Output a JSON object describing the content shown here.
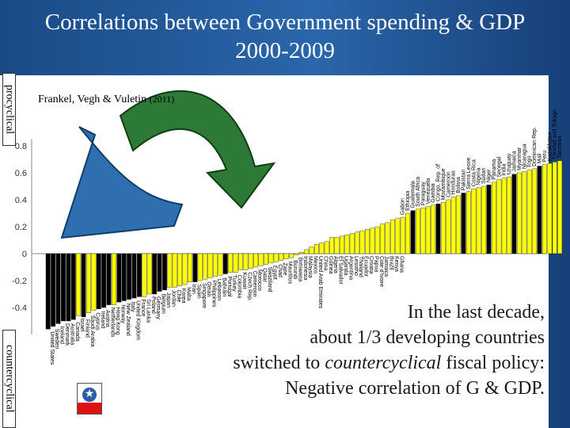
{
  "slide": {
    "title_line1": "Correlations between Government spending & GDP",
    "title_line2": "2000-2009",
    "label_procyclical": "procyclical",
    "label_countercyclical": "countercyclical",
    "citation_names": "Frankel, Vegh & Vuletin",
    "citation_year": "(2011)",
    "callout_line1": "In the last decade,",
    "callout_line2": "about 1/3 developing countries",
    "callout_line3_pre": "switched to ",
    "callout_line3_em": "countercyclical",
    "callout_line3_post": " fiscal policy:",
    "callout_line4": "Negative correlation of G & GDP."
  },
  "colors": {
    "background": "#1f5597",
    "developing_bar": "#ffff00",
    "industrial_bar": "#000000",
    "arrow": "#1f6b2a"
  },
  "chart_data": {
    "type": "bar",
    "title": "",
    "xlabel": "",
    "ylabel": "",
    "ylim": [
      -0.6,
      1.0
    ],
    "yticks": [
      "-0.4",
      "-0.2",
      "0",
      "0.2",
      "0.4",
      "0.6",
      "0.8"
    ],
    "grid": false,
    "legend": "none",
    "series": [
      {
        "categories": [
          "United States",
          "Sweden",
          "Iceland",
          "Denmark",
          "Australia",
          "Canada",
          "Israel",
          "Finland",
          "Saudi Arabia",
          "Cyprus",
          "Ireland",
          "Austria",
          "Netherlands",
          "Hong Kong",
          "Norway",
          "New Zealand",
          "Italy",
          "United Kingdom",
          "France",
          "Sri Lanka",
          "Poland",
          "Germany",
          "Belgium",
          "Japan",
          "Jordan",
          "Chile",
          "Korea",
          "Malta",
          "Iran",
          "Spain",
          "Singapore",
          "Oman",
          "Philippines",
          "Lebanon",
          "Bahrain",
          "Portugal",
          "Turkey",
          "Colombia",
          "Kuwait",
          "Czech Rep.",
          "Cameroon",
          "Morocco",
          "Qatar",
          "Swaziland",
          "Egypt",
          "Chad",
          "Zaire",
          "Mauritius",
          "Burundi",
          "Botswana",
          "Indonesia",
          "Malaysia",
          "Mexico",
          "United Arab Emirates",
          "China",
          "Guinea",
          "Algeria",
          "El Salvador",
          "Uganda",
          "Argentina",
          "Lesotho",
          "Thailand",
          "Ecuador",
          "Croatia",
          "Papua",
          "Cote d'Ivoire",
          "Jamaica",
          "Brazil",
          "Kenya",
          "Ghana"
        ],
        "values": [
          -0.56,
          -0.54,
          -0.52,
          -0.5,
          -0.5,
          -0.49,
          -0.46,
          -0.47,
          -0.44,
          -0.42,
          -0.41,
          -0.4,
          -0.38,
          -0.38,
          -0.36,
          -0.35,
          -0.34,
          -0.33,
          -0.32,
          -0.32,
          -0.3,
          -0.3,
          -0.28,
          -0.27,
          -0.25,
          -0.25,
          -0.24,
          -0.23,
          -0.21,
          -0.21,
          -0.2,
          -0.19,
          -0.18,
          -0.17,
          -0.16,
          -0.15,
          -0.14,
          -0.14,
          -0.12,
          -0.12,
          -0.11,
          -0.1,
          -0.09,
          -0.08,
          -0.07,
          -0.06,
          -0.05,
          -0.04,
          -0.03,
          -0.01,
          0.01,
          0.03,
          0.05,
          0.07,
          0.08,
          0.09,
          0.12,
          0.12,
          0.13,
          0.14,
          0.15,
          0.16,
          0.17,
          0.18,
          0.19,
          0.2,
          0.22,
          0.23,
          0.25,
          0.26
        ],
        "industrial": [
          true,
          true,
          true,
          true,
          true,
          true,
          false,
          true,
          false,
          false,
          true,
          true,
          true,
          false,
          true,
          true,
          true,
          true,
          true,
          false,
          false,
          true,
          true,
          true,
          false,
          false,
          false,
          false,
          false,
          true,
          false,
          false,
          false,
          false,
          false,
          true,
          false,
          false,
          false,
          false,
          false,
          false,
          false,
          false,
          false,
          false,
          false,
          false,
          false,
          false,
          false,
          false,
          false,
          false,
          false,
          false,
          false,
          false,
          false,
          false,
          false,
          false,
          false,
          false,
          false,
          false,
          false,
          false,
          false,
          false
        ]
      }
    ],
    "right_categories": [
      "Gabon",
      "Ethiopia",
      "Guatemala",
      "South Africa",
      "Paraguay",
      "Venezuela",
      "Gambia",
      "Congo, Rep. of",
      "Mozambique",
      "Cameroon",
      "Honduras",
      "Bolivia",
      "Pakistan",
      "Sierra Leone",
      "Costa Rica",
      "Nigeria",
      "Sudan",
      "Niger",
      "Panama",
      "Senegal",
      "India",
      "Uruguay",
      "Jamaica",
      "Myanmar",
      "Nicaragua",
      "Togo",
      "Dominican Rep.",
      "Mali",
      "Peru",
      "Kazakhstan",
      "Trinidad and Tobago",
      "Tanzania"
    ],
    "right_values": [
      0.27,
      0.3,
      0.32,
      0.33,
      0.34,
      0.35,
      0.36,
      0.37,
      0.38,
      0.4,
      0.42,
      0.43,
      0.45,
      0.46,
      0.48,
      0.49,
      0.5,
      0.51,
      0.53,
      0.55,
      0.56,
      0.57,
      0.59,
      0.6,
      0.61,
      0.62,
      0.63,
      0.65,
      0.66,
      0.67,
      0.68,
      0.69
    ]
  }
}
